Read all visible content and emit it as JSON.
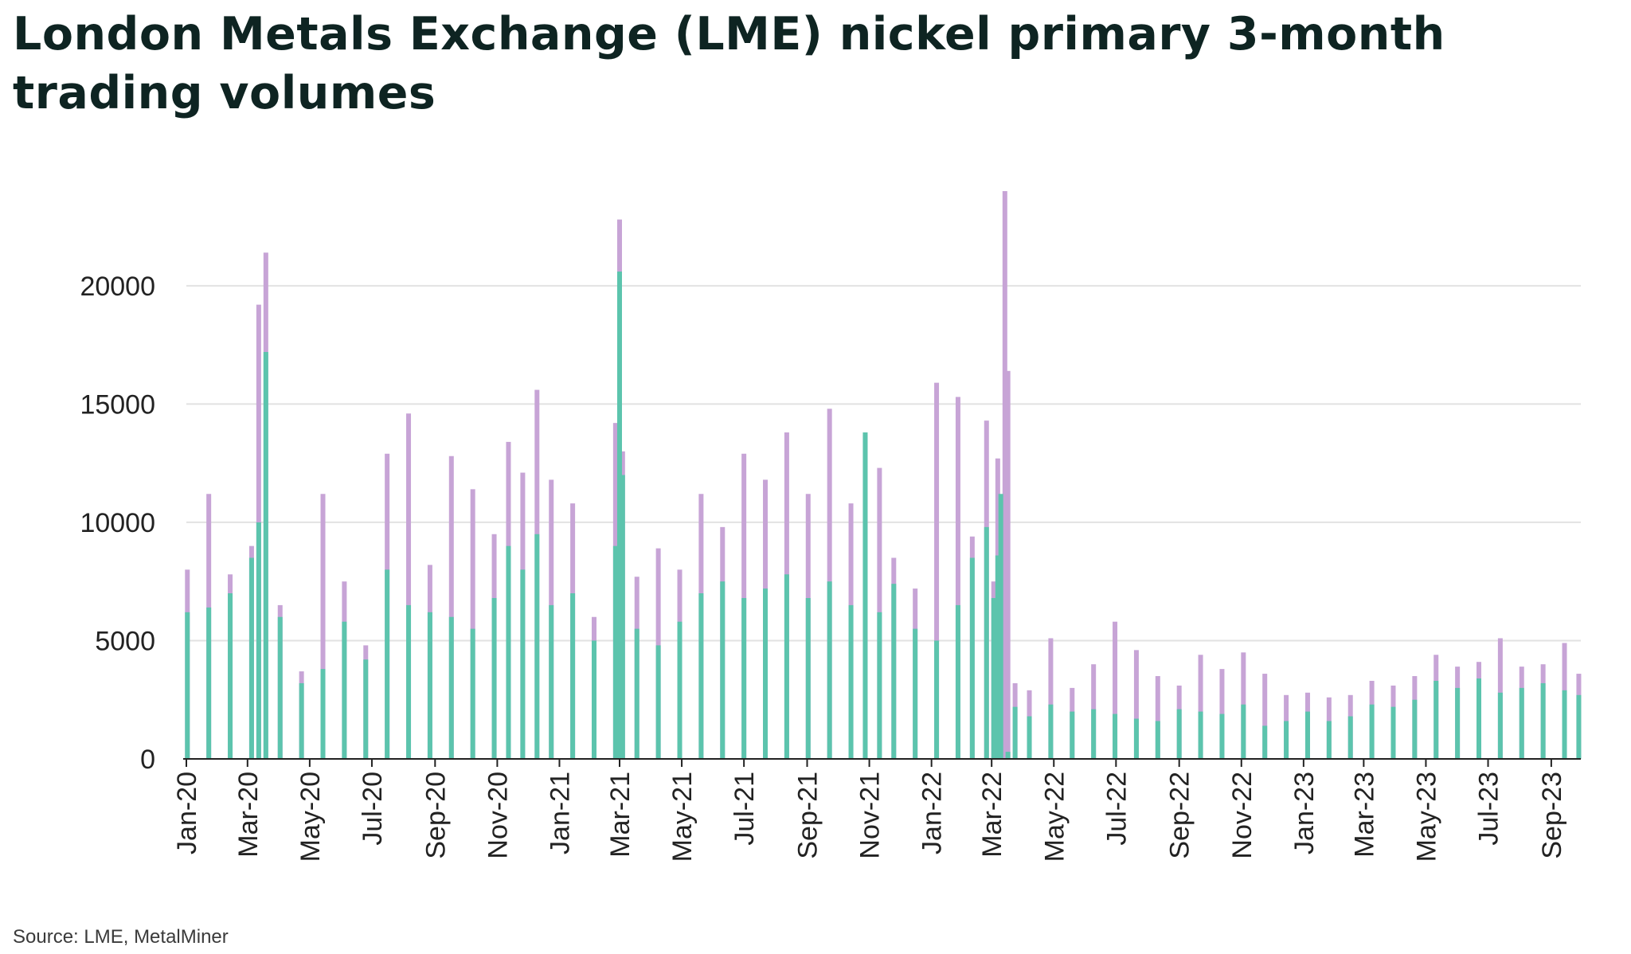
{
  "title": "London Metals Exchange (LME) nickel primary 3-month trading volumes",
  "source": "Source: LME, MetalMiner",
  "colors": {
    "teal": "#5cc4ad",
    "lilac": "#c7a4d6",
    "grid": "#e2e2e2",
    "axis": "#222222",
    "title": "#0e2422"
  },
  "chart_data": {
    "type": "bar",
    "title": "London Metals Exchange (LME) nickel primary 3-month trading volumes",
    "xlabel": "",
    "ylabel": "",
    "ylim": [
      0,
      24000
    ],
    "yticks": [
      0,
      5000,
      10000,
      15000,
      20000
    ],
    "ytick_labels": [
      "0",
      "5000",
      "10000",
      "15000",
      "20000"
    ],
    "xlim": [
      "2020-01-01",
      "2023-09-30"
    ],
    "xticks": [
      "Jan-20",
      "Mar-20",
      "May-20",
      "Jul-20",
      "Sep-20",
      "Nov-20",
      "Jan-21",
      "Mar-21",
      "May-21",
      "Jul-21",
      "Sep-21",
      "Nov-21",
      "Jan-22",
      "Mar-22",
      "May-22",
      "Jul-22",
      "Sep-22",
      "Nov-22",
      "Jan-23",
      "Mar-23",
      "May-23",
      "Jul-23",
      "Sep-23"
    ],
    "grid": true,
    "legend": "none",
    "series": [
      {
        "color": "#5cc4ad",
        "x": [
          "2020-01-02",
          "2020-01-23",
          "2020-02-13",
          "2020-03-05",
          "2020-03-12",
          "2020-03-19",
          "2020-04-02",
          "2020-04-23",
          "2020-05-14",
          "2020-06-04",
          "2020-06-25",
          "2020-07-16",
          "2020-08-06",
          "2020-08-27",
          "2020-09-17",
          "2020-10-08",
          "2020-10-29",
          "2020-11-12",
          "2020-11-26",
          "2020-12-10",
          "2020-12-24",
          "2021-01-14",
          "2021-02-04",
          "2021-02-25",
          "2021-03-01",
          "2021-03-04",
          "2021-03-18",
          "2021-04-08",
          "2021-04-29",
          "2021-05-20",
          "2021-06-10",
          "2021-07-01",
          "2021-07-22",
          "2021-08-12",
          "2021-09-02",
          "2021-09-23",
          "2021-10-14",
          "2021-10-28",
          "2021-11-11",
          "2021-11-25",
          "2021-12-16",
          "2022-01-06",
          "2022-01-27",
          "2022-02-10",
          "2022-02-24",
          "2022-03-03",
          "2022-03-07",
          "2022-03-10",
          "2022-03-14",
          "2022-03-17",
          "2022-03-24",
          "2022-04-07",
          "2022-04-28",
          "2022-05-19",
          "2022-06-09",
          "2022-06-30",
          "2022-07-21",
          "2022-08-11",
          "2022-09-01",
          "2022-09-22",
          "2022-10-13",
          "2022-11-03",
          "2022-11-24",
          "2022-12-15",
          "2023-01-05",
          "2023-01-26",
          "2023-02-16",
          "2023-03-09",
          "2023-03-30",
          "2023-04-20",
          "2023-05-11",
          "2023-06-01",
          "2023-06-22",
          "2023-07-13",
          "2023-08-03",
          "2023-08-24",
          "2023-09-14",
          "2023-09-28"
        ],
        "values": [
          6200,
          6400,
          7000,
          8500,
          10000,
          17200,
          6000,
          3200,
          3800,
          5800,
          4200,
          8000,
          6500,
          6200,
          6000,
          5500,
          6800,
          9000,
          8000,
          9500,
          6500,
          7000,
          5000,
          9000,
          20600,
          12000,
          5500,
          4800,
          5800,
          7000,
          7500,
          6800,
          7200,
          7800,
          6800,
          7500,
          6500,
          13800,
          6200,
          7400,
          5500,
          5000,
          6500,
          8500,
          9800,
          6800,
          8600,
          11200,
          0,
          300,
          2200,
          1800,
          2300,
          2000,
          2100,
          1900,
          1700,
          1600,
          2100,
          2000,
          1900,
          2300,
          1400,
          1600,
          2000,
          1600,
          1800,
          2300,
          2200,
          2500,
          3300,
          3000,
          3400,
          2800,
          3000,
          3200,
          2900,
          2700
        ]
      },
      {
        "color": "#c7a4d6",
        "x": [
          "2020-01-02",
          "2020-01-23",
          "2020-02-13",
          "2020-03-05",
          "2020-03-12",
          "2020-03-19",
          "2020-04-02",
          "2020-04-23",
          "2020-05-14",
          "2020-06-04",
          "2020-06-25",
          "2020-07-16",
          "2020-08-06",
          "2020-08-27",
          "2020-09-17",
          "2020-10-08",
          "2020-10-29",
          "2020-11-12",
          "2020-11-26",
          "2020-12-10",
          "2020-12-24",
          "2021-01-14",
          "2021-02-04",
          "2021-02-25",
          "2021-03-01",
          "2021-03-04",
          "2021-03-18",
          "2021-04-08",
          "2021-04-29",
          "2021-05-20",
          "2021-06-10",
          "2021-07-01",
          "2021-07-22",
          "2021-08-12",
          "2021-09-02",
          "2021-09-23",
          "2021-10-14",
          "2021-10-28",
          "2021-11-11",
          "2021-11-25",
          "2021-12-16",
          "2022-01-06",
          "2022-01-27",
          "2022-02-10",
          "2022-02-24",
          "2022-03-03",
          "2022-03-07",
          "2022-03-10",
          "2022-03-14",
          "2022-03-17",
          "2022-03-24",
          "2022-04-07",
          "2022-04-28",
          "2022-05-19",
          "2022-06-09",
          "2022-06-30",
          "2022-07-21",
          "2022-08-11",
          "2022-09-01",
          "2022-09-22",
          "2022-10-13",
          "2022-11-03",
          "2022-11-24",
          "2022-12-15",
          "2023-01-05",
          "2023-01-26",
          "2023-02-16",
          "2023-03-09",
          "2023-03-30",
          "2023-04-20",
          "2023-05-11",
          "2023-06-01",
          "2023-06-22",
          "2023-07-13",
          "2023-08-03",
          "2023-08-24",
          "2023-09-14",
          "2023-09-28"
        ],
        "values": [
          8000,
          11200,
          7800,
          9000,
          19200,
          21400,
          6500,
          3700,
          11200,
          7500,
          4800,
          12900,
          14600,
          8200,
          12800,
          11400,
          9500,
          13400,
          12100,
          15600,
          11800,
          10800,
          6000,
          14200,
          22800,
          13000,
          7700,
          8900,
          8000,
          11200,
          9800,
          12900,
          11800,
          13800,
          11200,
          14800,
          10800,
          13700,
          12300,
          8500,
          7200,
          15900,
          15300,
          9400,
          14300,
          7500,
          12700,
          11000,
          24000,
          16400,
          3200,
          2900,
          5100,
          3000,
          4000,
          5800,
          4600,
          3500,
          3100,
          4400,
          3800,
          4500,
          3600,
          2700,
          2800,
          2600,
          2700,
          3300,
          3100,
          3500,
          4400,
          3900,
          4100,
          5100,
          3900,
          4000,
          4900,
          3600
        ]
      }
    ]
  }
}
